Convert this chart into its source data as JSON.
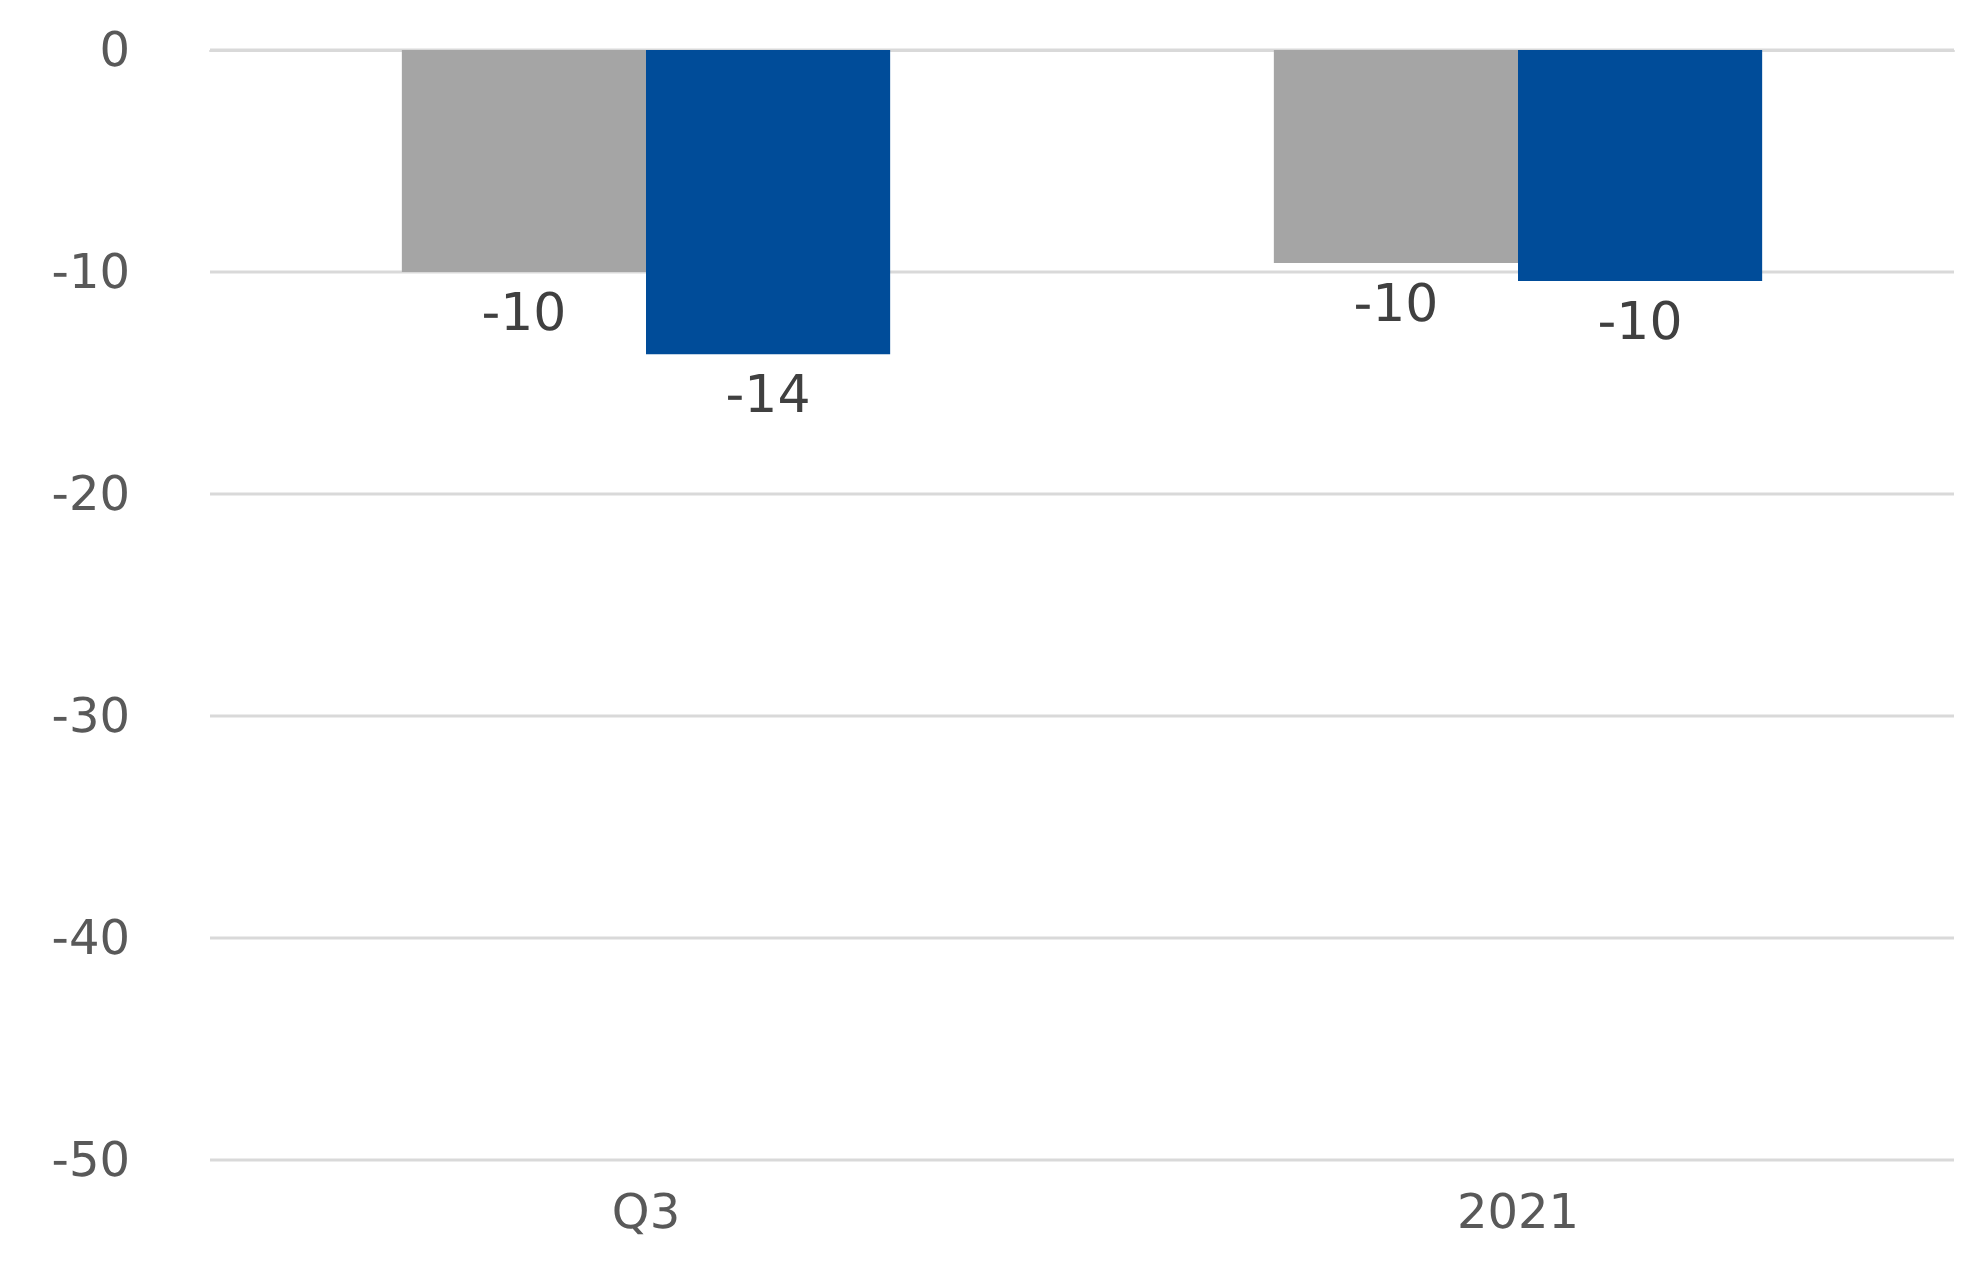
{
  "chart_data": {
    "type": "bar",
    "categories": [
      "Q3",
      "2021"
    ],
    "series": [
      {
        "color": "#a5a5a5",
        "values": [
          -10,
          -9.6
        ],
        "value_labels": [
          "-10",
          "-10"
        ]
      },
      {
        "color": "#004c99",
        "values": [
          -13.7,
          -10.4
        ],
        "value_labels": [
          "-14",
          "-10"
        ]
      }
    ],
    "ylim": [
      -50,
      0
    ],
    "yticks": [
      -50,
      -40,
      -30,
      -20,
      -10,
      0
    ],
    "grid": "y"
  }
}
